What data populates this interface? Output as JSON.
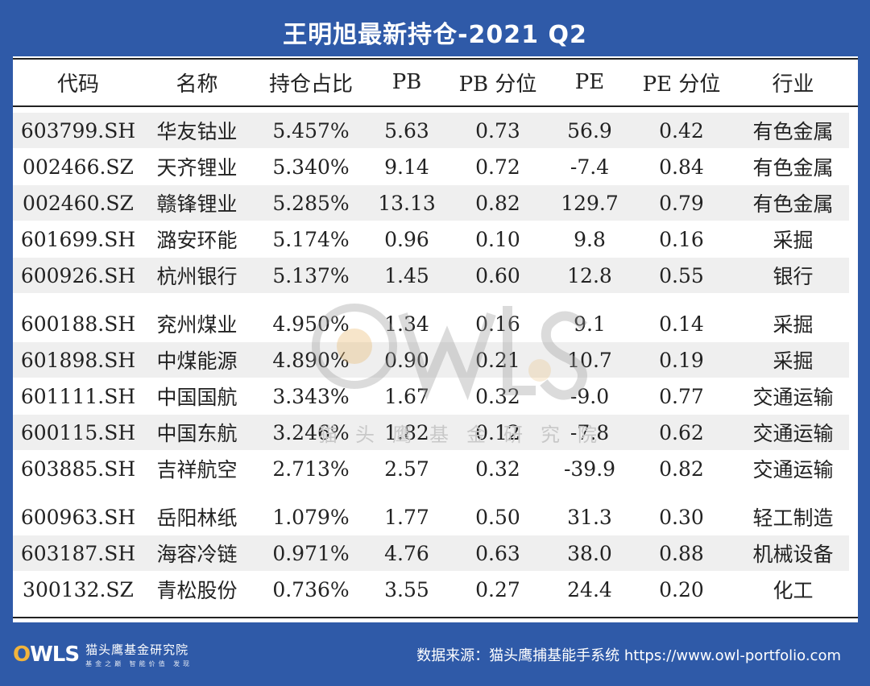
{
  "title": "王明旭最新持仓-2021 Q2",
  "headers": [
    "代码",
    "名称",
    "持仓占比",
    "PB",
    "PB 分位",
    "PE",
    "PE 分位",
    "行业"
  ],
  "rows": [
    [
      "603799.SH",
      "华友钴业",
      "5.457%",
      "5.63",
      "0.73",
      "56.9",
      "0.42",
      "有色金属"
    ],
    [
      "002466.SZ",
      "天齐锂业",
      "5.340%",
      "9.14",
      "0.72",
      "-7.4",
      "0.84",
      "有色金属"
    ],
    [
      "002460.SZ",
      "赣锋锂业",
      "5.285%",
      "13.13",
      "0.82",
      "129.7",
      "0.79",
      "有色金属"
    ],
    [
      "601699.SH",
      "潞安环能",
      "5.174%",
      "0.96",
      "0.10",
      "9.8",
      "0.16",
      "采掘"
    ],
    [
      "600926.SH",
      "杭州银行",
      "5.137%",
      "1.45",
      "0.60",
      "12.8",
      "0.55",
      "银行"
    ],
    [
      "600188.SH",
      "兖州煤业",
      "4.950%",
      "1.34",
      "0.16",
      "9.1",
      "0.14",
      "采掘"
    ],
    [
      "601898.SH",
      "中煤能源",
      "4.890%",
      "0.90",
      "0.21",
      "10.7",
      "0.19",
      "采掘"
    ],
    [
      "601111.SH",
      "中国国航",
      "3.343%",
      "1.67",
      "0.32",
      "-9.0",
      "0.77",
      "交通运输"
    ],
    [
      "600115.SH",
      "中国东航",
      "3.246%",
      "1.82",
      "0.12",
      "-7.8",
      "0.62",
      "交通运输"
    ],
    [
      "603885.SH",
      "吉祥航空",
      "2.713%",
      "2.57",
      "0.32",
      "-39.9",
      "0.82",
      "交通运输"
    ],
    [
      "600963.SH",
      "岳阳林纸",
      "1.079%",
      "1.77",
      "0.50",
      "31.3",
      "0.30",
      "轻工制造"
    ],
    [
      "603187.SH",
      "海容冷链",
      "0.971%",
      "4.76",
      "0.63",
      "38.0",
      "0.88",
      "机械设备"
    ],
    [
      "300132.SZ",
      "青松股份",
      "0.736%",
      "3.55",
      "0.27",
      "24.4",
      "0.20",
      "化工"
    ]
  ],
  "watermark": {
    "logo": "OWLS",
    "text": "猫头鹰基金研究院"
  },
  "footer": {
    "logo_mark_o": "O",
    "logo_mark_rest": "WLS",
    "logo_name": "猫头鹰基金研究院",
    "logo_slogan": "基金之巅 智能价值 发现",
    "source": "数据来源：猫头鹰捕基能手系统  https://www.owl-portfolio.com"
  },
  "colors": {
    "background": "#2f5aa8",
    "panel": "#ffffff",
    "row_shade": "#efefef",
    "accent": "#f2b43c"
  }
}
